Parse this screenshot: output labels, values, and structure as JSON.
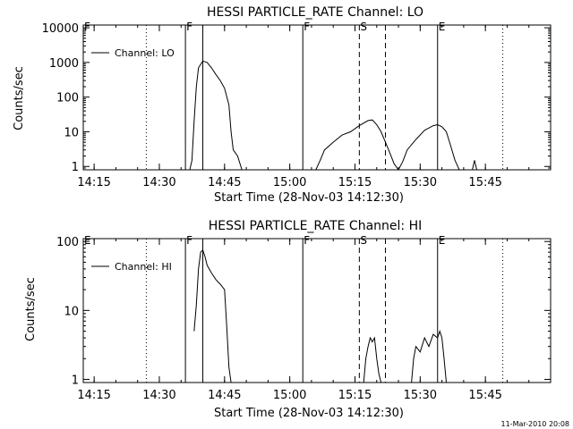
{
  "footer_stamp": "11-Mar-2010 20:08",
  "chart_data": [
    {
      "type": "line",
      "title": "HESSI PARTICLE_RATE Channel: LO",
      "xlabel": "Start Time (28-Nov-03 14:12:30)",
      "ylabel": "Counts/sec",
      "y_scale": "log",
      "xlim": [
        "14:12:30",
        "16:00"
      ],
      "ylim": [
        0.8,
        12000
      ],
      "x_ticks": [
        "14:15",
        "14:30",
        "14:45",
        "15:00",
        "15:15",
        "15:30",
        "15:45"
      ],
      "y_ticks": [
        1,
        10,
        100,
        1000,
        10000
      ],
      "y_tick_labels": [
        "1",
        "10",
        "100",
        "1000",
        "10000"
      ],
      "legend": {
        "label": "Channel: LO",
        "position": "top-left"
      },
      "markers": [
        {
          "label": "F",
          "time": "14:12:30",
          "style": "solid"
        },
        {
          "label": "F",
          "time": "14:36",
          "style": "solid"
        },
        {
          "label": "F",
          "time": "15:03",
          "style": "solid"
        },
        {
          "label": "S",
          "time": "15:16",
          "style": "dashed"
        },
        {
          "label": "E",
          "time": "15:34",
          "style": "solid"
        }
      ],
      "unlabeled_lines": [
        {
          "time": "14:27",
          "style": "dotted"
        },
        {
          "time": "14:40",
          "style": "solid"
        },
        {
          "time": "15:22",
          "style": "dashed"
        },
        {
          "time": "15:49",
          "style": "dotted"
        }
      ],
      "series": [
        {
          "segments": [
            [
              [
                "14:37",
                0.8
              ],
              [
                "14:37:30",
                1.5
              ],
              [
                "14:38",
                20
              ],
              [
                "14:38:30",
                200
              ],
              [
                "14:39",
                700
              ],
              [
                "14:40",
                1100
              ],
              [
                "14:41",
                1000
              ],
              [
                "14:42",
                700
              ],
              [
                "14:43",
                450
              ],
              [
                "14:44",
                300
              ],
              [
                "14:45",
                180
              ],
              [
                "14:46",
                60
              ],
              [
                "14:46:30",
                10
              ],
              [
                "14:47",
                3
              ],
              [
                "14:48",
                2
              ],
              [
                "14:49",
                0.8
              ]
            ],
            [
              [
                "15:06",
                0.8
              ],
              [
                "15:07",
                1.5
              ],
              [
                "15:08",
                3
              ],
              [
                "15:10",
                5
              ],
              [
                "15:12",
                8
              ],
              [
                "15:14",
                10
              ],
              [
                "15:16",
                15
              ],
              [
                "15:18",
                21
              ],
              [
                "15:19",
                22
              ],
              [
                "15:20",
                16
              ],
              [
                "15:21",
                10
              ],
              [
                "15:22",
                5
              ],
              [
                "15:23",
                2.5
              ],
              [
                "15:24",
                1.2
              ],
              [
                "15:25",
                0.8
              ]
            ],
            [
              [
                "15:25",
                0.8
              ],
              [
                "15:26",
                1.4
              ],
              [
                "15:27",
                3
              ],
              [
                "15:29",
                6
              ],
              [
                "15:31",
                11
              ],
              [
                "15:33",
                15
              ],
              [
                "15:34",
                16
              ],
              [
                "15:35",
                14
              ],
              [
                "15:36",
                10
              ],
              [
                "15:37",
                4
              ],
              [
                "15:38",
                1.5
              ],
              [
                "15:39",
                0.8
              ]
            ],
            [
              [
                "15:42",
                0.8
              ],
              [
                "15:42:30",
                1.5
              ],
              [
                "15:43",
                0.8
              ]
            ]
          ]
        }
      ]
    },
    {
      "type": "line",
      "title": "HESSI PARTICLE_RATE Channel: HI",
      "xlabel": "Start Time (28-Nov-03 14:12:30)",
      "ylabel": "Counts/sec",
      "y_scale": "log",
      "xlim": [
        "14:12:30",
        "16:00"
      ],
      "ylim": [
        0.9,
        110
      ],
      "x_ticks": [
        "14:15",
        "14:30",
        "14:45",
        "15:00",
        "15:15",
        "15:30",
        "15:45"
      ],
      "y_ticks": [
        1,
        10,
        100
      ],
      "y_tick_labels": [
        "1",
        "10",
        "100"
      ],
      "legend": {
        "label": "Channel: HI",
        "position": "top-left"
      },
      "markers": [
        {
          "label": "E",
          "time": "14:12:30",
          "style": "solid"
        },
        {
          "label": "F",
          "time": "14:36",
          "style": "solid"
        },
        {
          "label": "F",
          "time": "15:03",
          "style": "solid"
        },
        {
          "label": "S",
          "time": "15:16",
          "style": "dashed"
        },
        {
          "label": "E",
          "time": "15:34",
          "style": "solid"
        }
      ],
      "unlabeled_lines": [
        {
          "time": "14:27",
          "style": "dotted"
        },
        {
          "time": "14:40",
          "style": "solid"
        },
        {
          "time": "15:22",
          "style": "dashed"
        },
        {
          "time": "15:49",
          "style": "dotted"
        }
      ],
      "series": [
        {
          "segments": [
            [
              [
                "14:38",
                5
              ],
              [
                "14:38:30",
                12
              ],
              [
                "14:39",
                40
              ],
              [
                "14:39:30",
                70
              ],
              [
                "14:40",
                75
              ],
              [
                "14:40:30",
                60
              ],
              [
                "14:41",
                45
              ],
              [
                "14:42",
                35
              ],
              [
                "14:43",
                28
              ],
              [
                "14:44",
                24
              ],
              [
                "14:45",
                20
              ],
              [
                "14:45:30",
                6
              ],
              [
                "14:46",
                1.5
              ],
              [
                "14:46:30",
                0.9
              ]
            ],
            [
              [
                "15:17",
                0.9
              ],
              [
                "15:17:30",
                2
              ],
              [
                "15:18",
                3
              ],
              [
                "15:18:30",
                4
              ],
              [
                "15:19",
                3.5
              ],
              [
                "15:19:30",
                4
              ],
              [
                "15:20",
                2
              ],
              [
                "15:20:30",
                1.2
              ],
              [
                "15:21",
                0.9
              ]
            ],
            [
              [
                "15:28",
                0.9
              ],
              [
                "15:28:30",
                2
              ],
              [
                "15:29",
                3
              ],
              [
                "15:30",
                2.5
              ],
              [
                "15:31",
                4
              ],
              [
                "15:32",
                3
              ],
              [
                "15:33",
                4.5
              ],
              [
                "15:34",
                4
              ],
              [
                "15:34:30",
                5
              ],
              [
                "15:35",
                4
              ],
              [
                "15:35:30",
                2
              ],
              [
                "15:36",
                0.9
              ]
            ]
          ]
        }
      ]
    }
  ]
}
